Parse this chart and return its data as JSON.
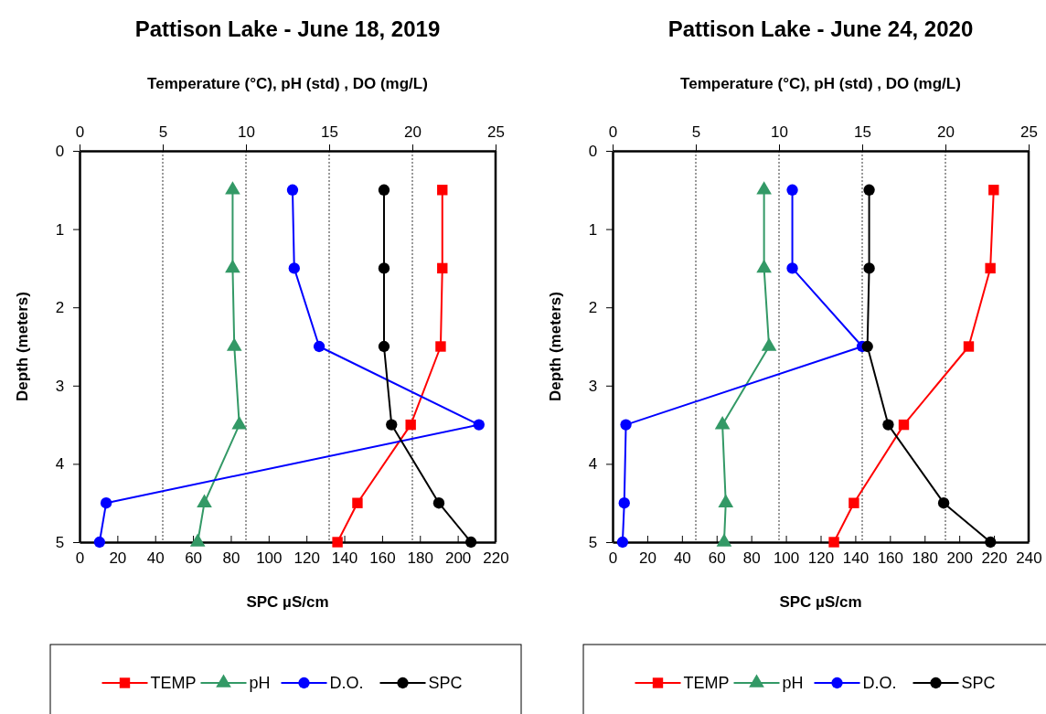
{
  "chart_data": [
    {
      "type": "line",
      "title": "Pattison Lake - June 18, 2019",
      "x2label": "Temperature (°C), pH (std) , DO (mg/L)",
      "xlabel": "SPC µS/cm",
      "ylabel": "Depth (meters)",
      "xlim": [
        0,
        220
      ],
      "xticks": [
        0,
        20,
        40,
        60,
        80,
        100,
        120,
        140,
        160,
        180,
        200,
        220
      ],
      "x2lim": [
        0,
        25
      ],
      "x2ticks": [
        0,
        5,
        10,
        15,
        20,
        25
      ],
      "ylim": [
        5,
        0
      ],
      "yticks": [
        0,
        1,
        2,
        3,
        4,
        5
      ],
      "grid": "x",
      "legend": "bottom",
      "line_style": "solid",
      "series": [
        {
          "name": "TEMP",
          "color": "#ff0000",
          "marker": "square",
          "axis": "x2",
          "x": [
            21.8,
            21.8,
            21.7,
            19.9,
            16.7,
            15.5
          ],
          "values": [
            0.5,
            1.5,
            2.5,
            3.5,
            4.5,
            5
          ]
        },
        {
          "name": "pH",
          "color": "#339966",
          "marker": "triangle",
          "axis": "x2",
          "x": [
            9.2,
            9.2,
            9.3,
            9.6,
            7.5,
            7.1
          ],
          "values": [
            0.5,
            1.5,
            2.5,
            3.5,
            4.5,
            5
          ]
        },
        {
          "name": "D.O.",
          "color": "#0000ff",
          "marker": "circle",
          "axis": "x2",
          "x": [
            12.8,
            12.9,
            14.4,
            24.0,
            1.6,
            1.2
          ],
          "values": [
            0.5,
            1.5,
            2.5,
            3.5,
            4.5,
            5
          ]
        },
        {
          "name": "SPC",
          "color": "#000000",
          "marker": "circle",
          "x": [
            161,
            161,
            161,
            165,
            190,
            207
          ],
          "values": [
            0.5,
            1.5,
            2.5,
            3.5,
            4.5,
            5
          ]
        }
      ]
    },
    {
      "type": "line",
      "title": "Pattison Lake - June 24, 2020",
      "x2label": "Temperature (°C), pH (std) , DO (mg/L)",
      "xlabel": "SPC µS/cm",
      "ylabel": "Depth (meters)",
      "xlim": [
        0,
        240
      ],
      "xticks": [
        0,
        20,
        40,
        60,
        80,
        100,
        120,
        140,
        160,
        180,
        200,
        220,
        240
      ],
      "x2lim": [
        0,
        25
      ],
      "x2ticks": [
        0,
        5,
        10,
        15,
        20,
        25
      ],
      "ylim": [
        5,
        0
      ],
      "yticks": [
        0,
        1,
        2,
        3,
        4,
        5
      ],
      "grid": "x",
      "legend": "bottom",
      "line_style": "solid",
      "series": [
        {
          "name": "TEMP",
          "color": "#ff0000",
          "marker": "square",
          "axis": "x2",
          "x": [
            22.9,
            22.7,
            21.4,
            17.5,
            14.5,
            13.3
          ],
          "values": [
            0.5,
            1.5,
            2.5,
            3.5,
            4.5,
            5
          ]
        },
        {
          "name": "pH",
          "color": "#339966",
          "marker": "triangle",
          "axis": "x2",
          "x": [
            9.1,
            9.1,
            9.4,
            6.6,
            6.8,
            6.7
          ],
          "values": [
            0.5,
            1.5,
            2.5,
            3.5,
            4.5,
            5
          ]
        },
        {
          "name": "D.O.",
          "color": "#0000ff",
          "marker": "circle",
          "axis": "x2",
          "x": [
            10.8,
            10.8,
            15.0,
            0.8,
            0.7,
            0.6
          ],
          "values": [
            0.5,
            1.5,
            2.5,
            3.5,
            4.5,
            5
          ]
        },
        {
          "name": "SPC",
          "color": "#000000",
          "marker": "circle",
          "x": [
            148,
            148,
            147,
            159,
            191,
            218
          ],
          "values": [
            0.5,
            1.5,
            2.5,
            3.5,
            4.5,
            5
          ]
        }
      ]
    }
  ]
}
